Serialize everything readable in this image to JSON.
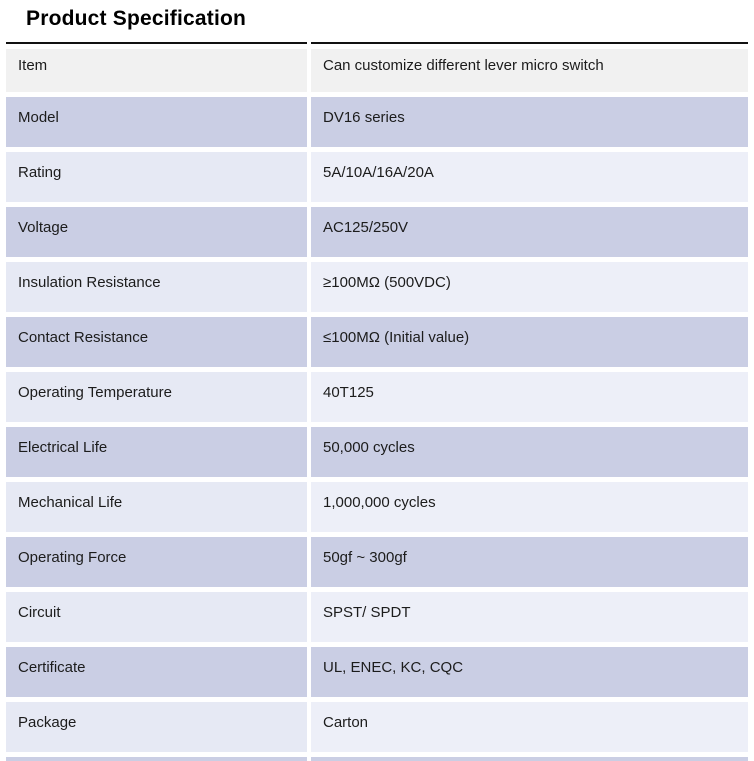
{
  "title": "Product Specification",
  "table": {
    "header": {
      "item": "Item",
      "value": "Can customize different lever micro switch"
    },
    "rows": [
      {
        "item": "Model",
        "value": "DV16 series"
      },
      {
        "item": "Rating",
        "value": "5A/10A/16A/20A"
      },
      {
        "item": "Voltage",
        "value": "AC125/250V"
      },
      {
        "item": "Insulation Resistance",
        "value": "≥100MΩ (500VDC)"
      },
      {
        "item": "Contact Resistance",
        "value": "≤100MΩ (Initial value)"
      },
      {
        "item": "Operating Temperature",
        "value": "40T125"
      },
      {
        "item": "Electrical Life",
        "value": "50,000 cycles"
      },
      {
        "item": "Mechanical Life",
        "value": "1,000,000 cycles"
      },
      {
        "item": "Operating Force",
        "value": "50gf ~ 300gf"
      },
      {
        "item": "Circuit",
        "value": "SPST/ SPDT"
      },
      {
        "item": "Certificate",
        "value": "UL, ENEC, KC, CQC"
      },
      {
        "item": "Package",
        "value": "Carton"
      }
    ]
  },
  "colors": {
    "header_bg": "#f1f1f1",
    "band_dark": "#cacee4",
    "band_light": "#e6e9f4",
    "band_light_value": "#edeff8",
    "rule_color": "#111111",
    "text_color": "#1c1c1c",
    "title_color": "#000000",
    "page_bg": "#ffffff"
  }
}
